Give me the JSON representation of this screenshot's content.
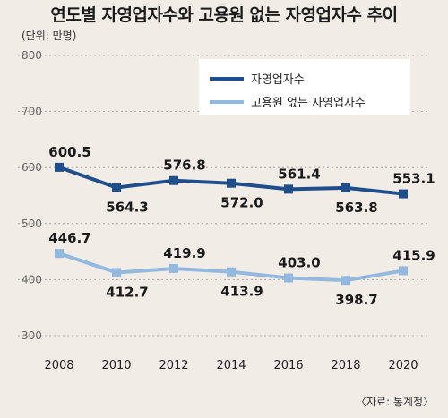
{
  "title": "연도별 자영업자수와 고용원 없는 자영업자수 추이",
  "unit": "(단위: 만명)",
  "source": "〈자료: 통계청〉",
  "chart_data": {
    "type": "line",
    "categories": [
      "2008",
      "2010",
      "2012",
      "2014",
      "2016",
      "2018",
      "2020"
    ],
    "series": [
      {
        "name": "자영업자수",
        "values": [
          600.5,
          564.3,
          576.8,
          572.0,
          561.4,
          563.8,
          553.1
        ],
        "labels": [
          "600.5",
          "564.3",
          "576.8",
          "572.0",
          "561.4",
          "563.8",
          "553.1"
        ],
        "color": "#1f4e8c"
      },
      {
        "name": "고용원 없는 자영업자수",
        "values": [
          446.7,
          412.7,
          419.9,
          413.9,
          403.0,
          398.7,
          415.9
        ],
        "labels": [
          "446.7",
          "412.7",
          "419.9",
          "413.9",
          "403.0",
          "398.7",
          "415.9"
        ],
        "color": "#93b9e0"
      }
    ],
    "ylim": [
      300,
      800
    ],
    "yticks": [
      "300",
      "400",
      "500",
      "600",
      "700",
      "800"
    ],
    "grid": true,
    "legend": "top-right"
  }
}
